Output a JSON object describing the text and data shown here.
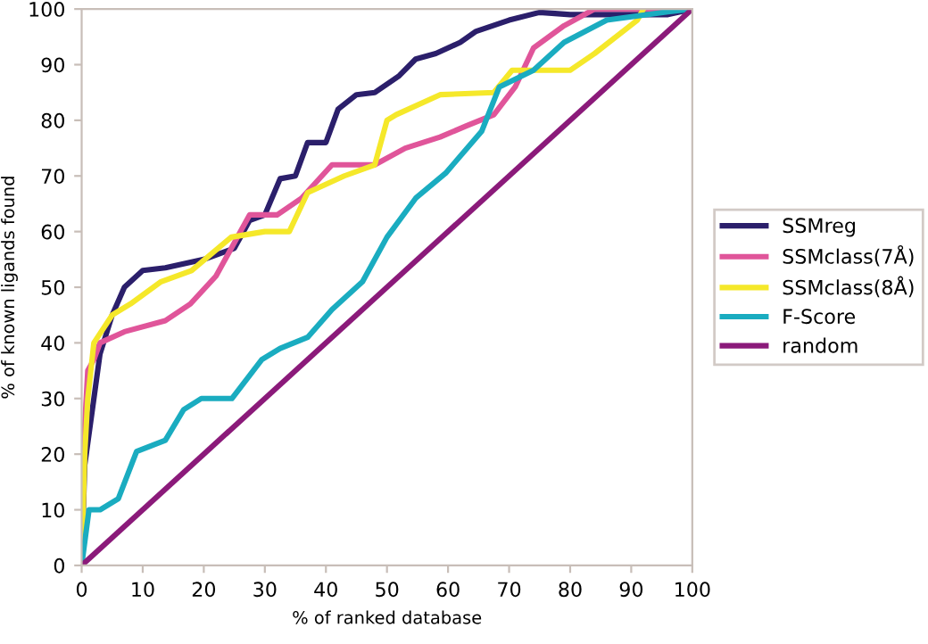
{
  "chart_data": {
    "type": "line",
    "xlabel": "% of ranked database",
    "ylabel": "% of known ligands found",
    "xlim": [
      0,
      100
    ],
    "ylim": [
      0,
      100
    ],
    "xticks": [
      0,
      10,
      20,
      30,
      40,
      50,
      60,
      70,
      80,
      90,
      100
    ],
    "yticks": [
      0,
      10,
      20,
      30,
      40,
      50,
      60,
      70,
      80,
      90,
      100
    ],
    "grid": false,
    "legend": "right",
    "marker": "none",
    "line_style": "solid",
    "series": [
      {
        "name": "SSMreg",
        "color": "#2b1f6b",
        "x": [
          0,
          0.5,
          1,
          2,
          3,
          5,
          7,
          10,
          13.7,
          20,
          25,
          27.5,
          30,
          32.5,
          35,
          37,
          40,
          42,
          45,
          48,
          52,
          54.7,
          58,
          62,
          64.6,
          70,
          75,
          80,
          96,
          100
        ],
        "values": [
          0,
          18,
          22,
          30,
          38,
          45,
          50,
          53,
          53.5,
          55,
          57,
          62,
          63,
          69.5,
          70,
          76,
          76,
          82,
          84.6,
          85,
          88,
          91,
          92,
          94,
          96,
          98,
          99.4,
          99,
          99,
          100
        ]
      },
      {
        "name": "SSMclass(7Å)",
        "color": "#e0559a",
        "x": [
          0,
          0.5,
          1,
          2,
          3,
          7,
          13.7,
          17.8,
          22,
          27.5,
          32,
          36,
          41,
          48,
          53,
          58.7,
          63,
          67.5,
          71,
          74,
          79,
          84,
          100
        ],
        "values": [
          0,
          25,
          35,
          37,
          40,
          42,
          44,
          47,
          52,
          63,
          63,
          66,
          72,
          72,
          75,
          77,
          79,
          81,
          86,
          93,
          97,
          100,
          100
        ]
      },
      {
        "name": "SSMclass(8Å)",
        "color": "#f5e82a",
        "x": [
          0,
          0.5,
          1,
          2,
          5,
          8,
          13,
          18,
          24.5,
          30,
          34,
          37,
          43,
          48,
          50,
          51.5,
          58.7,
          67.5,
          70.5,
          80,
          84,
          91,
          92
        ],
        "values": [
          0,
          20,
          30,
          40,
          45,
          47,
          51,
          53,
          59,
          60,
          60,
          67,
          70,
          72,
          80,
          81,
          84.6,
          85,
          89,
          89,
          92,
          98,
          100
        ]
      },
      {
        "name": "F-Score",
        "color": "#1aacc0",
        "x": [
          0,
          1.2,
          3,
          6,
          9,
          13.7,
          16.7,
          19.6,
          24.6,
          29.5,
          32.5,
          37,
          41,
          43,
          46,
          50,
          54.7,
          59.6,
          65.5,
          68.4,
          74,
          79,
          86,
          96,
          100
        ],
        "values": [
          0,
          10,
          10,
          12,
          20.5,
          22.5,
          28,
          30,
          30,
          37,
          39,
          41,
          46,
          48,
          51,
          59,
          66,
          70.5,
          78,
          86,
          89,
          94,
          98,
          99.5,
          100
        ]
      },
      {
        "name": "random",
        "color": "#8b1a7a",
        "x": [
          0,
          100
        ],
        "values": [
          0,
          100
        ]
      }
    ]
  }
}
